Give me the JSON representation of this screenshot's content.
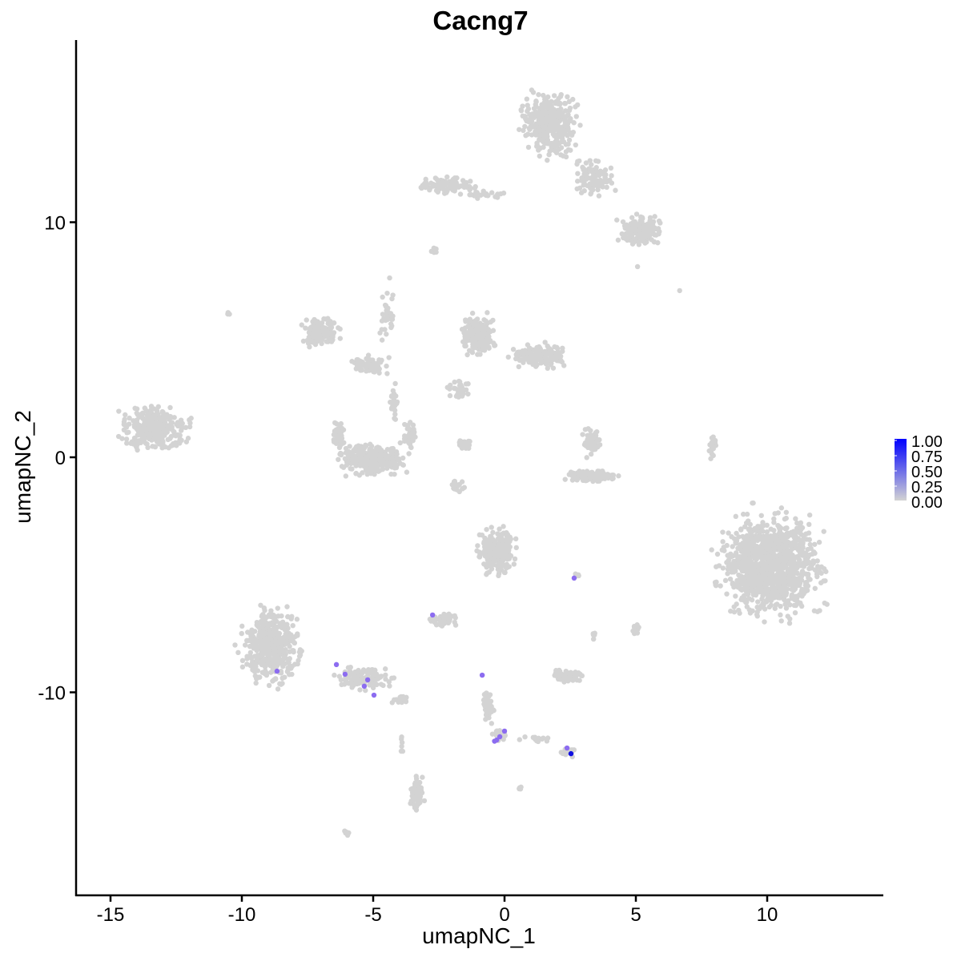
{
  "chart_data": {
    "type": "scatter",
    "title": "Cacng7",
    "xlabel": "umapNC_1",
    "ylabel": "umapNC_2",
    "xlim": [
      -16.5,
      14.2
    ],
    "ylim": [
      -18.7,
      17.7
    ],
    "x_ticks": [
      -15,
      -10,
      -5,
      0,
      5,
      10
    ],
    "y_ticks": [
      -10,
      0,
      10
    ],
    "x_tick_labels": [
      "-15",
      "-10",
      "-5",
      "0",
      "5",
      "10"
    ],
    "y_tick_labels": [
      "-10",
      "0",
      "10"
    ],
    "grid": false,
    "legend": {
      "placement": "right",
      "type": "colorbar",
      "labels": [
        "1.00",
        "0.75",
        "0.50",
        "0.25",
        "0.00"
      ],
      "low_color": "#d3d3d3",
      "high_color": "#0000ff"
    },
    "background_clusters": [
      {
        "cx": 1.7,
        "cy": 14.2,
        "sx": 1.2,
        "sy": 1.5,
        "n": 380
      },
      {
        "cx": 3.3,
        "cy": 11.8,
        "sx": 1.0,
        "sy": 1.0,
        "n": 90
      },
      {
        "cx": 5.2,
        "cy": 9.6,
        "sx": 1.0,
        "sy": 0.8,
        "n": 140
      },
      {
        "cx": -2.2,
        "cy": 11.6,
        "sx": 1.2,
        "sy": 0.4,
        "n": 110
      },
      {
        "cx": -0.8,
        "cy": 11.2,
        "sx": 1.2,
        "sy": 0.2,
        "n": 25
      },
      {
        "cx": -2.7,
        "cy": 8.8,
        "sx": 0.2,
        "sy": 0.2,
        "n": 8
      },
      {
        "cx": -13.3,
        "cy": 1.2,
        "sx": 1.5,
        "sy": 1.1,
        "n": 330
      },
      {
        "cx": -7.0,
        "cy": 5.4,
        "sx": 0.8,
        "sy": 0.8,
        "n": 120
      },
      {
        "cx": -5.2,
        "cy": 3.9,
        "sx": 1.0,
        "sy": 0.5,
        "n": 70
      },
      {
        "cx": -4.5,
        "cy": 6.2,
        "sx": 0.3,
        "sy": 1.5,
        "n": 35
      },
      {
        "cx": -4.2,
        "cy": 2.3,
        "sx": 0.2,
        "sy": 1.0,
        "n": 25
      },
      {
        "cx": -5.0,
        "cy": -0.1,
        "sx": 1.5,
        "sy": 0.8,
        "n": 300
      },
      {
        "cx": -6.3,
        "cy": 1.0,
        "sx": 0.3,
        "sy": 0.8,
        "n": 40
      },
      {
        "cx": -3.6,
        "cy": 1.0,
        "sx": 0.3,
        "sy": 0.8,
        "n": 40
      },
      {
        "cx": -1.0,
        "cy": 5.2,
        "sx": 0.8,
        "sy": 1.0,
        "n": 200
      },
      {
        "cx": 1.3,
        "cy": 4.3,
        "sx": 1.2,
        "sy": 0.6,
        "n": 170
      },
      {
        "cx": -1.8,
        "cy": 2.9,
        "sx": 0.5,
        "sy": 0.5,
        "n": 30
      },
      {
        "cx": -1.5,
        "cy": 0.5,
        "sx": 0.4,
        "sy": 0.3,
        "n": 20
      },
      {
        "cx": 3.3,
        "cy": 0.7,
        "sx": 0.4,
        "sy": 0.7,
        "n": 60
      },
      {
        "cx": 3.3,
        "cy": -0.8,
        "sx": 1.1,
        "sy": 0.3,
        "n": 120
      },
      {
        "cx": 7.9,
        "cy": 0.4,
        "sx": 0.15,
        "sy": 0.6,
        "n": 18
      },
      {
        "cx": 10.2,
        "cy": -4.6,
        "sx": 2.3,
        "sy": 2.5,
        "n": 1100
      },
      {
        "cx": -8.9,
        "cy": -8.0,
        "sx": 1.3,
        "sy": 1.8,
        "n": 480
      },
      {
        "cx": -5.3,
        "cy": -9.4,
        "sx": 1.2,
        "sy": 0.6,
        "n": 110
      },
      {
        "cx": -3.9,
        "cy": -10.3,
        "sx": 0.4,
        "sy": 0.3,
        "n": 20
      },
      {
        "cx": -0.3,
        "cy": -4.0,
        "sx": 0.9,
        "sy": 1.2,
        "n": 220
      },
      {
        "cx": -2.3,
        "cy": -6.9,
        "sx": 0.6,
        "sy": 0.4,
        "n": 45
      },
      {
        "cx": 2.4,
        "cy": -9.3,
        "sx": 0.7,
        "sy": 0.3,
        "n": 80
      },
      {
        "cx": -0.6,
        "cy": -10.5,
        "sx": 0.3,
        "sy": 1.0,
        "n": 40
      },
      {
        "cx": -0.2,
        "cy": -11.8,
        "sx": 0.3,
        "sy": 0.3,
        "n": 30
      },
      {
        "cx": 1.2,
        "cy": -12.0,
        "sx": 0.8,
        "sy": 0.2,
        "n": 12
      },
      {
        "cx": 2.4,
        "cy": -12.5,
        "sx": 0.3,
        "sy": 0.3,
        "n": 25
      },
      {
        "cx": 2.8,
        "cy": -5.0,
        "sx": 0.2,
        "sy": 0.15,
        "n": 6
      },
      {
        "cx": 5.0,
        "cy": -7.4,
        "sx": 0.2,
        "sy": 0.3,
        "n": 15
      },
      {
        "cx": 3.4,
        "cy": -7.6,
        "sx": 0.1,
        "sy": 0.2,
        "n": 5
      },
      {
        "cx": -3.3,
        "cy": -14.3,
        "sx": 0.3,
        "sy": 0.9,
        "n": 70
      },
      {
        "cx": -3.9,
        "cy": -12.2,
        "sx": 0.1,
        "sy": 0.5,
        "n": 6
      },
      {
        "cx": -6.0,
        "cy": -16.0,
        "sx": 0.15,
        "sy": 0.1,
        "n": 6
      },
      {
        "cx": 0.6,
        "cy": -14.1,
        "sx": 0.1,
        "sy": 0.1,
        "n": 4
      },
      {
        "cx": -10.5,
        "cy": 6.1,
        "sx": 0.08,
        "sy": 0.08,
        "n": 3
      },
      {
        "cx": 6.7,
        "cy": 7.1,
        "sx": 0.05,
        "sy": 0.05,
        "n": 1
      },
      {
        "cx": 5.1,
        "cy": 8.1,
        "sx": 0.05,
        "sy": 0.05,
        "n": 1
      },
      {
        "cx": -1.7,
        "cy": -1.2,
        "sx": 0.5,
        "sy": 0.3,
        "n": 15
      }
    ],
    "expressing_points": [
      {
        "x": 2.65,
        "y": -5.14,
        "value": 0.5
      },
      {
        "x": -2.74,
        "y": -6.71,
        "value": 0.5
      },
      {
        "x": -8.66,
        "y": -9.1,
        "value": 0.5
      },
      {
        "x": -6.4,
        "y": -8.82,
        "value": 0.5
      },
      {
        "x": -6.07,
        "y": -9.23,
        "value": 0.5
      },
      {
        "x": -5.21,
        "y": -9.47,
        "value": 0.5
      },
      {
        "x": -5.34,
        "y": -9.74,
        "value": 0.5
      },
      {
        "x": -4.97,
        "y": -10.12,
        "value": 0.5
      },
      {
        "x": -0.85,
        "y": -9.27,
        "value": 0.5
      },
      {
        "x": 0.0,
        "y": -11.65,
        "value": 0.5
      },
      {
        "x": -0.18,
        "y": -11.89,
        "value": 0.5
      },
      {
        "x": -0.3,
        "y": -12.03,
        "value": 0.5
      },
      {
        "x": -0.38,
        "y": -12.08,
        "value": 0.5
      },
      {
        "x": 2.38,
        "y": -12.37,
        "value": 0.5
      },
      {
        "x": 2.53,
        "y": -12.61,
        "value": 1.0
      }
    ]
  }
}
